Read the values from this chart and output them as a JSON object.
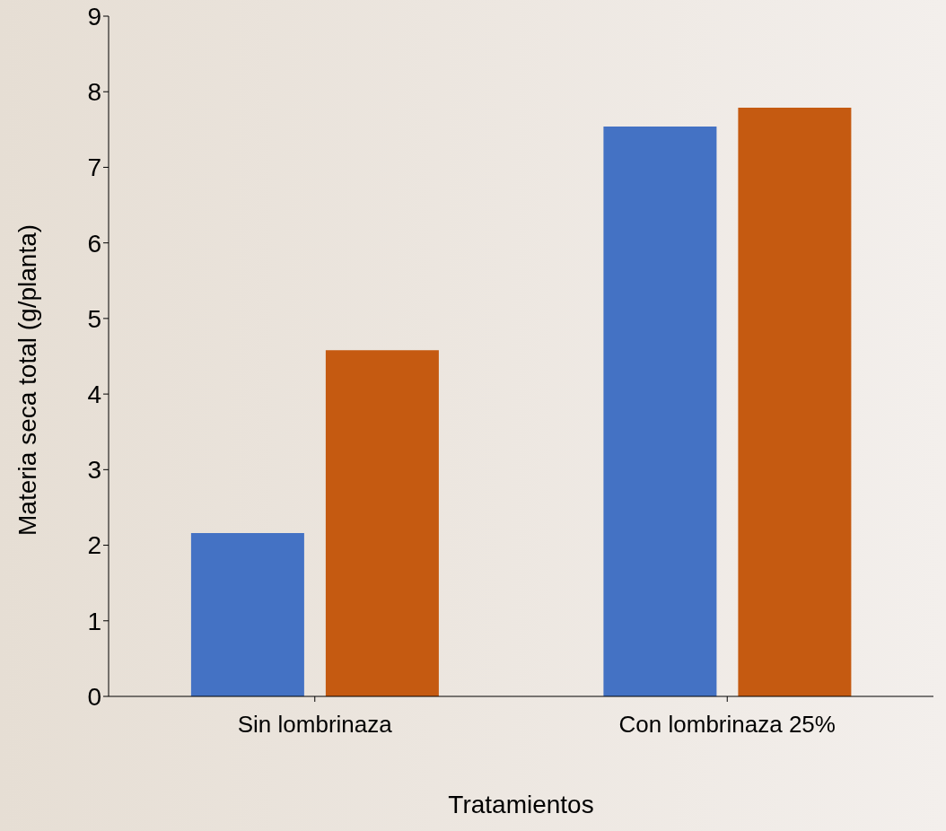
{
  "chart_data": {
    "type": "bar",
    "xlabel": "Tratamientos",
    "ylabel": "Materia seca total (g/planta)",
    "categories": [
      "Sin lombrinaza",
      "Con lombrinaza 25%"
    ],
    "series": [
      {
        "color": "#4472c4",
        "values": [
          2.16,
          7.54
        ]
      },
      {
        "color": "#c55a11",
        "values": [
          4.58,
          7.79
        ]
      }
    ],
    "ylim": [
      0,
      9
    ],
    "yticks": [
      0,
      1,
      2,
      3,
      4,
      5,
      6,
      7,
      8,
      9
    ],
    "grid": false,
    "legend": false
  }
}
